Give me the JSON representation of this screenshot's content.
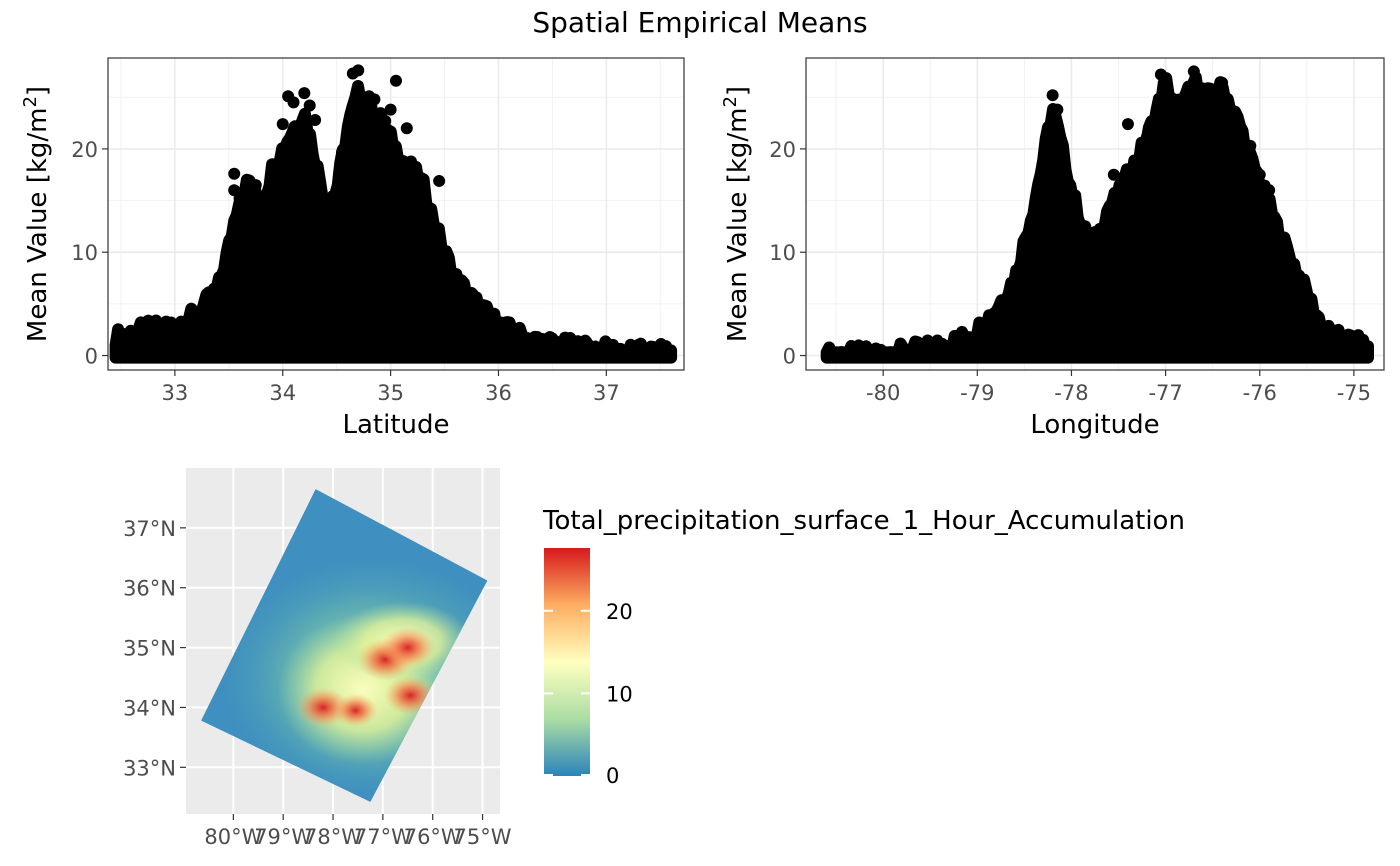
{
  "title": "Spatial Empirical Means",
  "chart_data": [
    {
      "type": "scatter",
      "xlabel": "Latitude",
      "ylabel": "Mean Value [kg/m",
      "ylabel_sup": "2",
      "ylabel_close": "]",
      "xlim": [
        32.38,
        37.72
      ],
      "ylim": [
        -1.4,
        28.8
      ],
      "xticks": [
        33,
        34,
        35,
        36,
        37
      ],
      "xtick_labels": [
        "33",
        "34",
        "35",
        "36",
        "37"
      ],
      "yticks": [
        0,
        10,
        20
      ],
      "ytick_labels": [
        "0",
        "10",
        "20"
      ],
      "grid": true,
      "envelope": {
        "x": [
          32.45,
          32.7,
          33.0,
          33.2,
          33.4,
          33.5,
          33.6,
          33.7,
          33.8,
          33.9,
          34.0,
          34.1,
          34.2,
          34.3,
          34.4,
          34.5,
          34.6,
          34.7,
          34.8,
          34.9,
          35.0,
          35.1,
          35.2,
          35.3,
          35.4,
          35.5,
          35.6,
          35.8,
          36.0,
          36.3,
          36.6,
          37.0,
          37.3,
          37.6
        ],
        "y": [
          1.8,
          2.5,
          3.0,
          4.0,
          6.5,
          10.5,
          15.5,
          17.0,
          14.0,
          18.0,
          20.0,
          22.0,
          23.5,
          19.0,
          14.5,
          16.0,
          22.0,
          25.5,
          24.0,
          23.0,
          21.0,
          19.0,
          18.0,
          16.5,
          13.0,
          10.0,
          7.5,
          5.0,
          3.0,
          1.5,
          1.0,
          0.6,
          0.4,
          0.3
        ]
      },
      "points": [
        [
          33.55,
          17.6
        ],
        [
          33.75,
          16.5
        ],
        [
          34.0,
          19.8
        ],
        [
          34.0,
          22.4
        ],
        [
          34.05,
          25.1
        ],
        [
          34.1,
          24.5
        ],
        [
          34.2,
          25.4
        ],
        [
          34.25,
          24.2
        ],
        [
          34.3,
          22.8
        ],
        [
          34.2,
          20.5
        ],
        [
          34.65,
          27.3
        ],
        [
          34.7,
          27.6
        ],
        [
          34.75,
          24.0
        ],
        [
          34.8,
          25.1
        ],
        [
          34.85,
          24.8
        ],
        [
          34.95,
          22.7
        ],
        [
          35.05,
          26.6
        ],
        [
          35.0,
          23.8
        ],
        [
          35.3,
          16.3
        ],
        [
          35.45,
          16.9
        ],
        [
          33.55,
          16.0
        ],
        [
          34.55,
          19.7
        ],
        [
          35.15,
          22.0
        ],
        [
          33.6,
          15.2
        ],
        [
          34.9,
          21.5
        ]
      ]
    },
    {
      "type": "scatter",
      "xlabel": "Longitude",
      "ylabel": "Mean Value [kg/m",
      "ylabel_sup": "2",
      "ylabel_close": "]",
      "xlim": [
        -80.82,
        -74.68
      ],
      "ylim": [
        -1.4,
        28.8
      ],
      "xticks": [
        -80,
        -79,
        -78,
        -77,
        -76,
        -75
      ],
      "xtick_labels": [
        "-80",
        "-79",
        "-78",
        "-77",
        "-76",
        "-75"
      ],
      "yticks": [
        0,
        10,
        20
      ],
      "ytick_labels": [
        "0",
        "10",
        "20"
      ],
      "grid": true,
      "envelope": {
        "x": [
          -80.6,
          -80.2,
          -79.8,
          -79.5,
          -79.2,
          -79.0,
          -78.8,
          -78.6,
          -78.5,
          -78.4,
          -78.3,
          -78.2,
          -78.1,
          -78.0,
          -77.9,
          -77.8,
          -77.7,
          -77.6,
          -77.5,
          -77.4,
          -77.3,
          -77.2,
          -77.1,
          -77.0,
          -76.9,
          -76.8,
          -76.7,
          -76.6,
          -76.5,
          -76.4,
          -76.3,
          -76.2,
          -76.1,
          -76.0,
          -75.9,
          -75.8,
          -75.7,
          -75.6,
          -75.5,
          -75.4,
          -75.3,
          -75.2,
          -75.0,
          -74.85
        ],
        "y": [
          0.1,
          0.2,
          0.4,
          0.8,
          1.5,
          2.5,
          4.5,
          7.5,
          11.0,
          14.5,
          19.0,
          24.0,
          20.0,
          16.0,
          13.0,
          10.5,
          12.0,
          14.5,
          15.5,
          17.5,
          19.0,
          21.0,
          23.5,
          26.5,
          24.0,
          24.5,
          26.5,
          25.5,
          25.0,
          26.0,
          24.0,
          22.0,
          19.0,
          17.0,
          14.5,
          12.0,
          10.0,
          8.0,
          6.0,
          4.0,
          2.5,
          1.8,
          1.4,
          0.7
        ]
      },
      "points": [
        [
          -78.2,
          25.2
        ],
        [
          -78.15,
          23.8
        ],
        [
          -77.55,
          17.5
        ],
        [
          -77.4,
          22.4
        ],
        [
          -77.05,
          27.2
        ],
        [
          -77.0,
          24.4
        ],
        [
          -76.9,
          23.0
        ],
        [
          -76.8,
          25.0
        ],
        [
          -76.75,
          24.5
        ],
        [
          -76.7,
          27.5
        ],
        [
          -76.5,
          25.2
        ],
        [
          -76.4,
          26.4
        ],
        [
          -76.35,
          23.5
        ],
        [
          -76.25,
          22.6
        ],
        [
          -76.1,
          20.3
        ],
        [
          -76.0,
          17.5
        ],
        [
          -75.9,
          16.0
        ],
        [
          -76.45,
          24.6
        ],
        [
          -76.6,
          23.3
        ],
        [
          -77.2,
          21.1
        ]
      ]
    },
    {
      "type": "heatmap",
      "x_tick_labels": [
        "80°W",
        "79°W",
        "78°W",
        "77°W",
        "76°W",
        "75°W"
      ],
      "y_tick_labels": [
        "33°N",
        "34°N",
        "35°N",
        "36°N",
        "37°N"
      ],
      "x_ticks": [
        -80,
        -79,
        -78,
        -77,
        -76,
        -75
      ],
      "y_ticks": [
        33,
        34,
        35,
        36,
        37
      ],
      "xlim": [
        -80.95,
        -74.65
      ],
      "ylim": [
        32.22,
        38.0
      ],
      "domain_corners": [
        [
          -80.65,
          33.78
        ],
        [
          -78.35,
          37.65
        ],
        [
          -74.9,
          36.12
        ],
        [
          -77.25,
          32.42
        ]
      ],
      "legend": {
        "title": "Total_precipitation_surface_1_Hour_Accumulation",
        "ticks": [
          0,
          10,
          20
        ],
        "tick_labels": [
          "0",
          "10",
          "20"
        ],
        "max": 27.6,
        "colors": [
          "#2b83ba",
          "#abdda4",
          "#ffffbf",
          "#fdae61",
          "#d7191c"
        ]
      },
      "hotspots": [
        [
          -78.2,
          34.0,
          25.5
        ],
        [
          -76.95,
          34.8,
          27.6
        ],
        [
          -76.5,
          35.0,
          26.6
        ],
        [
          -76.45,
          34.2,
          25.0
        ],
        [
          -77.55,
          33.95,
          19.5
        ]
      ],
      "panel_background": "#ebebeb",
      "panel_grid_color": "#ffffff"
    }
  ]
}
